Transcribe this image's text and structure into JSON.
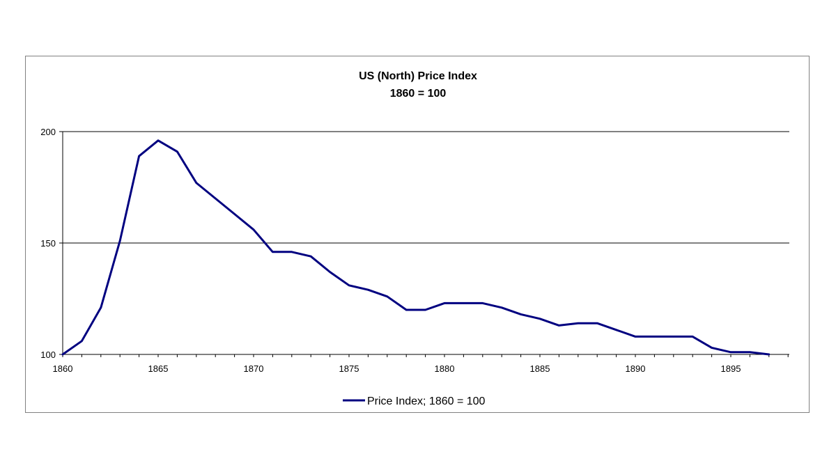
{
  "chart_data": {
    "type": "line",
    "title": "US (North) Price Index",
    "subtitle": "1860 = 100",
    "xlabel": "",
    "ylabel": "",
    "xlim": [
      1860,
      1898
    ],
    "ylim": [
      100,
      200
    ],
    "x_ticks": [
      1860,
      1865,
      1870,
      1875,
      1880,
      1885,
      1890,
      1895
    ],
    "y_ticks": [
      100,
      150,
      200
    ],
    "grid": "horizontal",
    "legend_position": "bottom",
    "series": [
      {
        "name": "Price Index; 1860 = 100",
        "color": "#000080",
        "x": [
          1860,
          1861,
          1862,
          1863,
          1864,
          1865,
          1866,
          1867,
          1868,
          1869,
          1870,
          1871,
          1872,
          1873,
          1874,
          1875,
          1876,
          1877,
          1878,
          1879,
          1880,
          1881,
          1882,
          1883,
          1884,
          1885,
          1886,
          1887,
          1888,
          1889,
          1890,
          1891,
          1892,
          1893,
          1894,
          1895,
          1896,
          1897
        ],
        "values": [
          100,
          106,
          121,
          151,
          189,
          196,
          191,
          177,
          170,
          163,
          156,
          146,
          146,
          144,
          137,
          131,
          129,
          126,
          120,
          120,
          123,
          123,
          123,
          121,
          118,
          116,
          113,
          114,
          114,
          111,
          108,
          108,
          108,
          108,
          103,
          101,
          101,
          100
        ]
      }
    ]
  }
}
